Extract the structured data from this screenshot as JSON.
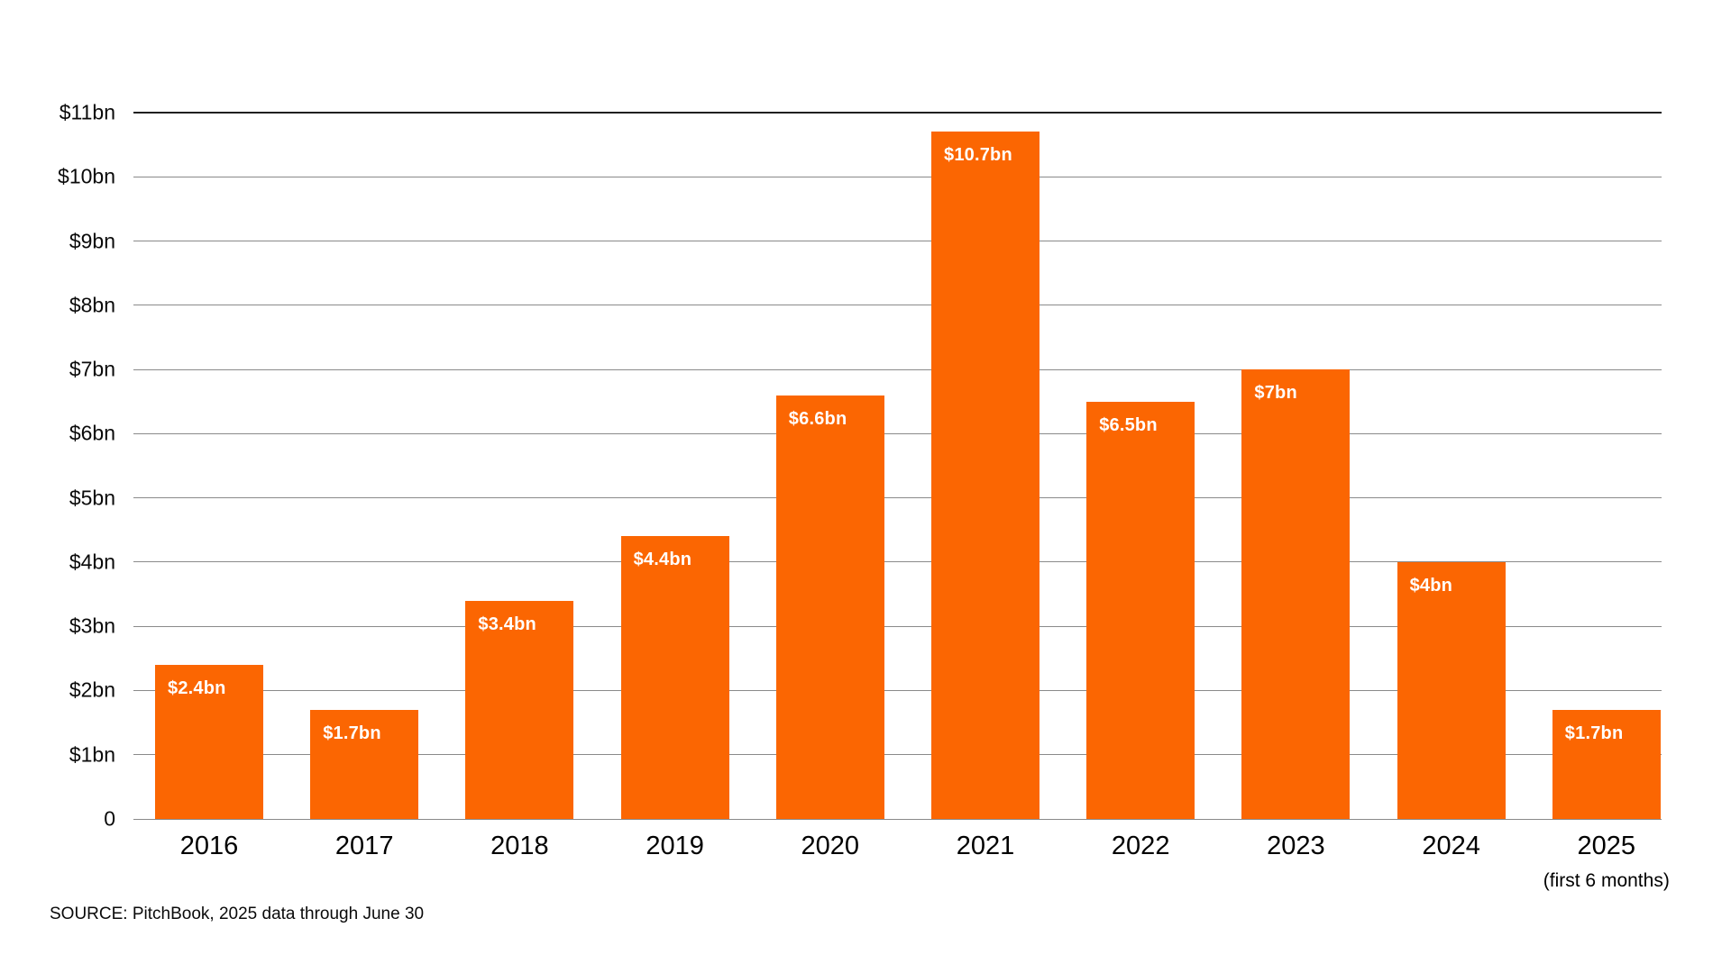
{
  "chart_data": {
    "type": "bar",
    "title": "",
    "xlabel": "",
    "ylabel": "",
    "categories": [
      "2016",
      "2017",
      "2018",
      "2019",
      "2020",
      "2021",
      "2022",
      "2023",
      "2024",
      "2025"
    ],
    "values": [
      2.4,
      1.7,
      3.4,
      4.4,
      6.6,
      10.7,
      6.5,
      7,
      4,
      1.7
    ],
    "bar_value_labels": [
      "$2.4bn",
      "$1.7bn",
      "$3.4bn",
      "$4.4bn",
      "$6.6bn",
      "$10.7bn",
      "$6.5bn",
      "$7bn",
      "$4bn",
      "$1.7bn"
    ],
    "y_ticks": [
      {
        "label": "$11bn",
        "value": 11
      },
      {
        "label": "$10bn",
        "value": 10
      },
      {
        "label": "$9bn",
        "value": 9
      },
      {
        "label": "$8bn",
        "value": 8
      },
      {
        "label": "$7bn",
        "value": 7
      },
      {
        "label": "$6bn",
        "value": 6
      },
      {
        "label": "$5bn",
        "value": 5
      },
      {
        "label": "$4bn",
        "value": 4
      },
      {
        "label": "$3bn",
        "value": 3
      },
      {
        "label": "$2bn",
        "value": 2
      },
      {
        "label": "$1bn",
        "value": 1
      },
      {
        "label": "0",
        "value": 0
      }
    ],
    "ylim": [
      0,
      11
    ],
    "grid": true,
    "legend_position": "none",
    "x_note_category": "2025",
    "x_note": "(first 6 months)",
    "bar_color": "#FB6602",
    "bar_label_color": "#FFFFFF",
    "gridline_color": "#8A8A8A",
    "top_gridline_color": "#1F1F1F",
    "text_color": "#0A0A0A",
    "source": "SOURCE: PitchBook, 2025 data through June 30"
  }
}
